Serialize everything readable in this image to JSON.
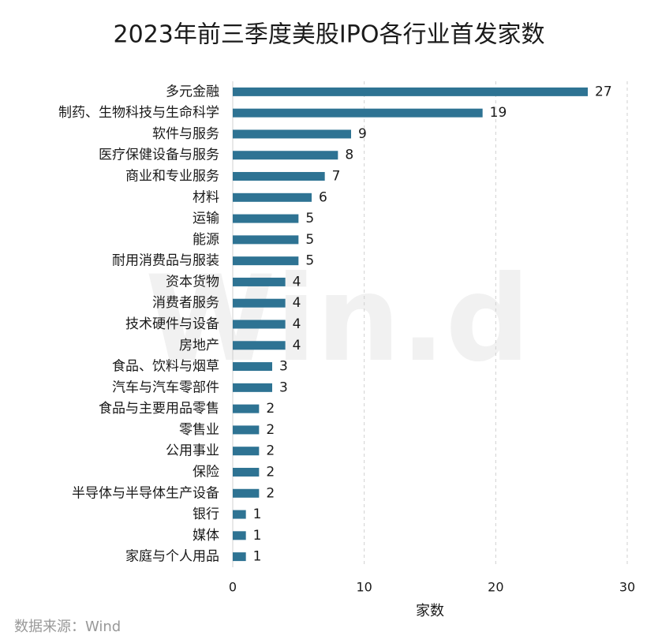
{
  "chart_data": {
    "type": "bar",
    "orientation": "horizontal",
    "title": "2023年前三季度美股IPO各行业首发家数",
    "categories": [
      "多元金融",
      "制药、生物科技与生命科学",
      "软件与服务",
      "医疗保健设备与服务",
      "商业和专业服务",
      "材料",
      "运输",
      "能源",
      "耐用消费品与服装",
      "资本货物",
      "消费者服务",
      "技术硬件与设备",
      "房地产",
      "食品、饮料与烟草",
      "汽车与汽车零部件",
      "食品与主要用品零售",
      "零售业",
      "公用事业",
      "保险",
      "半导体与半导体生产设备",
      "银行",
      "媒体",
      "家庭与个人用品"
    ],
    "values": [
      27,
      19,
      9,
      8,
      7,
      6,
      5,
      5,
      5,
      4,
      4,
      4,
      4,
      3,
      3,
      2,
      2,
      2,
      2,
      2,
      1,
      1,
      1
    ],
    "color": "#2e7393",
    "xlim": [
      0,
      30
    ],
    "xticks": [
      0,
      10,
      20,
      30
    ],
    "grid": true,
    "xlabel": "家数",
    "source": "数据来源：Wind",
    "watermark": "Win.d"
  }
}
